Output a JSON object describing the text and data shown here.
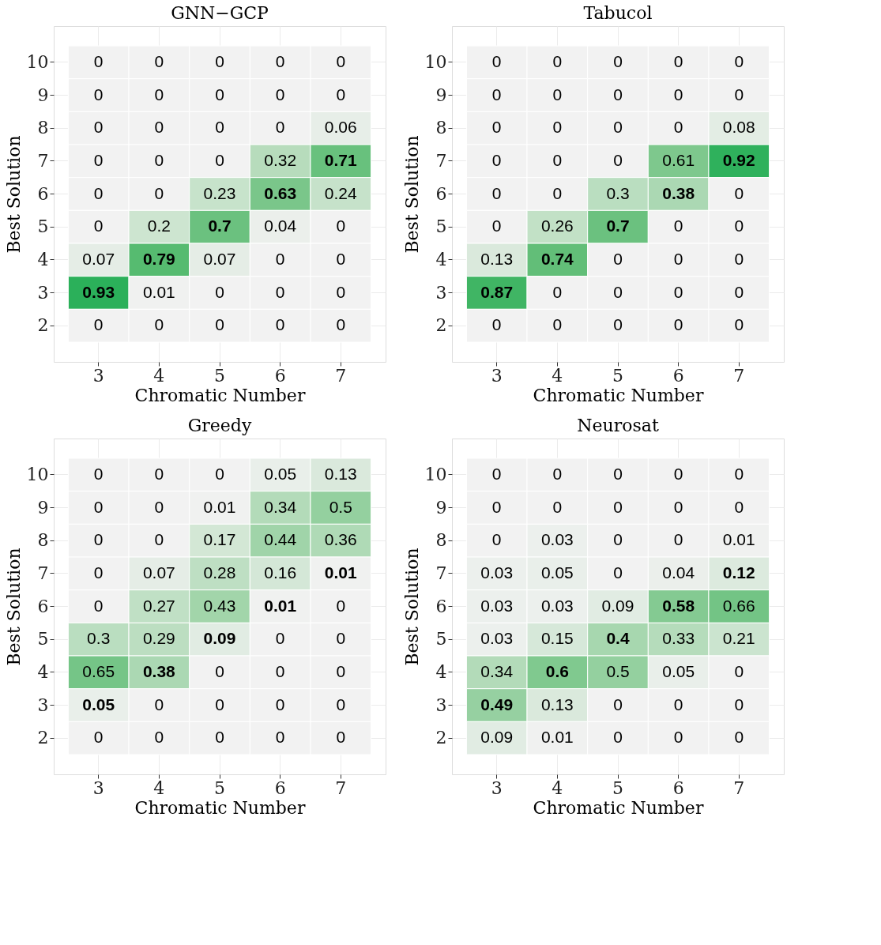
{
  "chart_data": [
    {
      "type": "heatmap",
      "title": "GNN−GCP",
      "xlabel": "Chromatic Number",
      "ylabel": "Best Solution",
      "grid": true,
      "legend": false,
      "data_labels": true,
      "categories": [
        "3",
        "4",
        "5",
        "6",
        "7"
      ],
      "y_categories": [
        "10",
        "9",
        "8",
        "7",
        "6",
        "5",
        "4",
        "3",
        "2"
      ],
      "cells": [
        [
          0,
          0,
          0,
          0,
          0
        ],
        [
          0,
          0,
          0,
          0,
          0
        ],
        [
          0,
          0,
          0,
          0,
          0.06
        ],
        [
          0,
          0,
          0,
          0.32,
          0.71
        ],
        [
          0,
          0,
          0.23,
          0.63,
          0.24
        ],
        [
          0,
          0.2,
          0.7,
          0.04,
          0
        ],
        [
          0.07,
          0.79,
          0.07,
          0,
          0
        ],
        [
          0.93,
          0.01,
          0,
          0,
          0
        ],
        [
          0,
          0,
          0,
          0,
          0
        ]
      ]
    },
    {
      "type": "heatmap",
      "title": "Tabucol",
      "xlabel": "Chromatic Number",
      "ylabel": "Best Solution",
      "grid": true,
      "legend": false,
      "data_labels": true,
      "categories": [
        "3",
        "4",
        "5",
        "6",
        "7"
      ],
      "y_categories": [
        "10",
        "9",
        "8",
        "7",
        "6",
        "5",
        "4",
        "3",
        "2"
      ],
      "cells": [
        [
          0,
          0,
          0,
          0,
          0
        ],
        [
          0,
          0,
          0,
          0,
          0
        ],
        [
          0,
          0,
          0,
          0,
          0.08
        ],
        [
          0,
          0,
          0,
          0.61,
          0.92
        ],
        [
          0,
          0,
          0.3,
          0.38,
          0
        ],
        [
          0,
          0.26,
          0.7,
          0,
          0
        ],
        [
          0.13,
          0.74,
          0,
          0,
          0
        ],
        [
          0.87,
          0,
          0,
          0,
          0
        ],
        [
          0,
          0,
          0,
          0,
          0
        ]
      ]
    },
    {
      "type": "heatmap",
      "title": "Greedy",
      "xlabel": "Chromatic Number",
      "ylabel": "Best Solution",
      "grid": true,
      "legend": false,
      "data_labels": true,
      "categories": [
        "3",
        "4",
        "5",
        "6",
        "7"
      ],
      "y_categories": [
        "10",
        "9",
        "8",
        "7",
        "6",
        "5",
        "4",
        "3",
        "2"
      ],
      "cells": [
        [
          0,
          0,
          0,
          0.05,
          0.13
        ],
        [
          0,
          0,
          0.01,
          0.34,
          0.5
        ],
        [
          0,
          0,
          0.17,
          0.44,
          0.36
        ],
        [
          0,
          0.07,
          0.28,
          0.16,
          0.01
        ],
        [
          0,
          0.27,
          0.43,
          0.01,
          0
        ],
        [
          0.3,
          0.29,
          0.09,
          0,
          0
        ],
        [
          0.65,
          0.38,
          0,
          0,
          0
        ],
        [
          0.05,
          0,
          0,
          0,
          0
        ],
        [
          0,
          0,
          0,
          0,
          0
        ]
      ]
    },
    {
      "type": "heatmap",
      "title": "Neurosat",
      "xlabel": "Chromatic Number",
      "ylabel": "Best Solution",
      "grid": true,
      "legend": false,
      "data_labels": true,
      "categories": [
        "3",
        "4",
        "5",
        "6",
        "7"
      ],
      "y_categories": [
        "10",
        "9",
        "8",
        "7",
        "6",
        "5",
        "4",
        "3",
        "2"
      ],
      "cells": [
        [
          0,
          0,
          0,
          0,
          0
        ],
        [
          0,
          0,
          0,
          0,
          0
        ],
        [
          0,
          0.03,
          0,
          0,
          0.01
        ],
        [
          0.03,
          0.05,
          0,
          0.04,
          0.12
        ],
        [
          0.03,
          0.03,
          0.09,
          0.58,
          0.66
        ],
        [
          0.03,
          0.15,
          0.4,
          0.33,
          0.21
        ],
        [
          0.34,
          0.6,
          0.5,
          0.05,
          0
        ],
        [
          0.49,
          0.13,
          0,
          0,
          0
        ],
        [
          0.09,
          0.01,
          0,
          0,
          0
        ]
      ]
    }
  ]
}
